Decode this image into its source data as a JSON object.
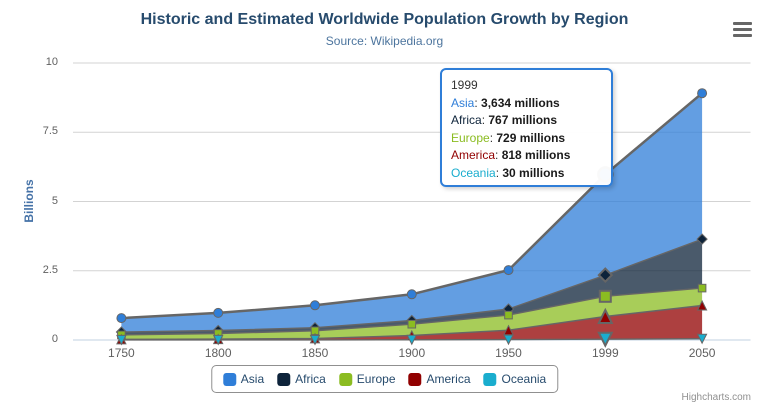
{
  "chart_data": {
    "type": "area",
    "stacking": "normal",
    "title": "Historic and Estimated Worldwide Population Growth by Region",
    "subtitle": "Source: Wikipedia.org",
    "xlabel": "",
    "ylabel": "Billions",
    "categories": [
      "1750",
      "1800",
      "1850",
      "1900",
      "1950",
      "1999",
      "2050"
    ],
    "ylim": [
      0,
      10
    ],
    "yticks": [
      0,
      2.5,
      5,
      7.5,
      10
    ],
    "grid": true,
    "legend_position": "bottom",
    "unit": "millions",
    "plot_unit": "billions",
    "series": [
      {
        "name": "Asia",
        "color": "#2f7ed8",
        "marker_symbol": "circle",
        "values": [
          502,
          635,
          809,
          947,
          1402,
          3634,
          5268
        ]
      },
      {
        "name": "Africa",
        "color": "#0d233a",
        "marker_symbol": "diamond",
        "values": [
          106,
          107,
          111,
          133,
          221,
          767,
          1766
        ]
      },
      {
        "name": "Europe",
        "color": "#8bbc21",
        "marker_symbol": "square",
        "values": [
          163,
          203,
          276,
          408,
          547,
          729,
          628
        ]
      },
      {
        "name": "America",
        "color": "#910000",
        "marker_symbol": "triangle",
        "values": [
          18,
          31,
          54,
          156,
          339,
          818,
          1201
        ]
      },
      {
        "name": "Oceania",
        "color": "#1aadce",
        "marker_symbol": "triangle-down",
        "values": [
          2,
          2,
          2,
          6,
          13,
          30,
          46
        ]
      }
    ],
    "hovered_category": "1999",
    "hovered_series": "Asia"
  },
  "tooltip": {
    "header": "1999",
    "border_color": "#2f7ed8",
    "rows": [
      {
        "name": "Asia",
        "color": "#2f7ed8",
        "value": "3,634 millions"
      },
      {
        "name": "Africa",
        "color": "#0d233a",
        "value": "767 millions"
      },
      {
        "name": "Europe",
        "color": "#8bbc21",
        "value": "729 millions"
      },
      {
        "name": "America",
        "color": "#910000",
        "value": "818 millions"
      },
      {
        "name": "Oceania",
        "color": "#1aadce",
        "value": "30 millions"
      }
    ]
  },
  "credits": {
    "label": "Highcharts.com"
  },
  "icons": {
    "export_menu": "hamburger-icon"
  },
  "colors": {
    "title_text": "#274b6d",
    "subtitle_text": "#4d759e",
    "y_title_text": "#4572a7",
    "axis_label_text": "#606060",
    "legend_text": "#274b6d",
    "legend_border": "#909090",
    "grid_line": "#d3d3d3",
    "axis_line": "#c0d0e0",
    "series_line": "#666666",
    "tooltip_text": "#333333"
  }
}
